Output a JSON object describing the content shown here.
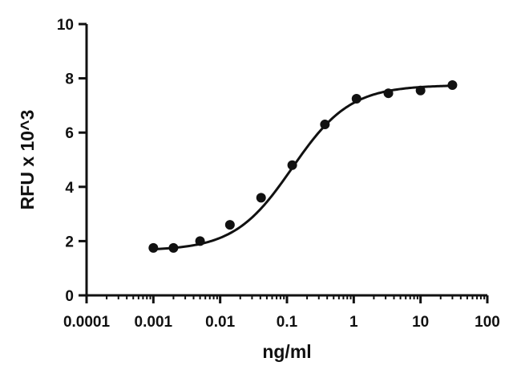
{
  "chart_data": {
    "type": "scatter",
    "title": "",
    "xlabel": "ng/ml",
    "ylabel": "RFU x 10^3",
    "xscale": "log",
    "xlim": [
      0.0001,
      100
    ],
    "ylim": [
      0,
      10
    ],
    "x_ticks": [
      "0.0001",
      "0.001",
      "0.01",
      "0.1",
      "1",
      "10",
      "100"
    ],
    "x_tick_values": [
      0.0001,
      0.001,
      0.01,
      0.1,
      1,
      10,
      100
    ],
    "y_ticks": [
      "0",
      "2",
      "4",
      "6",
      "8",
      "10"
    ],
    "y_tick_values": [
      0,
      2,
      4,
      6,
      8,
      10
    ],
    "grid": false,
    "legend": "none",
    "points": [
      {
        "x": 0.001,
        "y": 1.75
      },
      {
        "x": 0.002,
        "y": 1.75
      },
      {
        "x": 0.005,
        "y": 2.0
      },
      {
        "x": 0.014,
        "y": 2.6
      },
      {
        "x": 0.041,
        "y": 3.6
      },
      {
        "x": 0.12,
        "y": 4.8
      },
      {
        "x": 0.37,
        "y": 6.3
      },
      {
        "x": 1.1,
        "y": 7.25
      },
      {
        "x": 3.3,
        "y": 7.45
      },
      {
        "x": 10,
        "y": 7.55
      },
      {
        "x": 30,
        "y": 7.75
      }
    ],
    "fit_curve": {
      "model": "four-parameter logistic",
      "bottom": 1.65,
      "top": 7.75,
      "ec50": 0.12,
      "hill_slope": 1.0,
      "x_range": [
        0.001,
        30
      ]
    },
    "colors": {
      "marks": "#111111",
      "axis": "#111111"
    }
  }
}
